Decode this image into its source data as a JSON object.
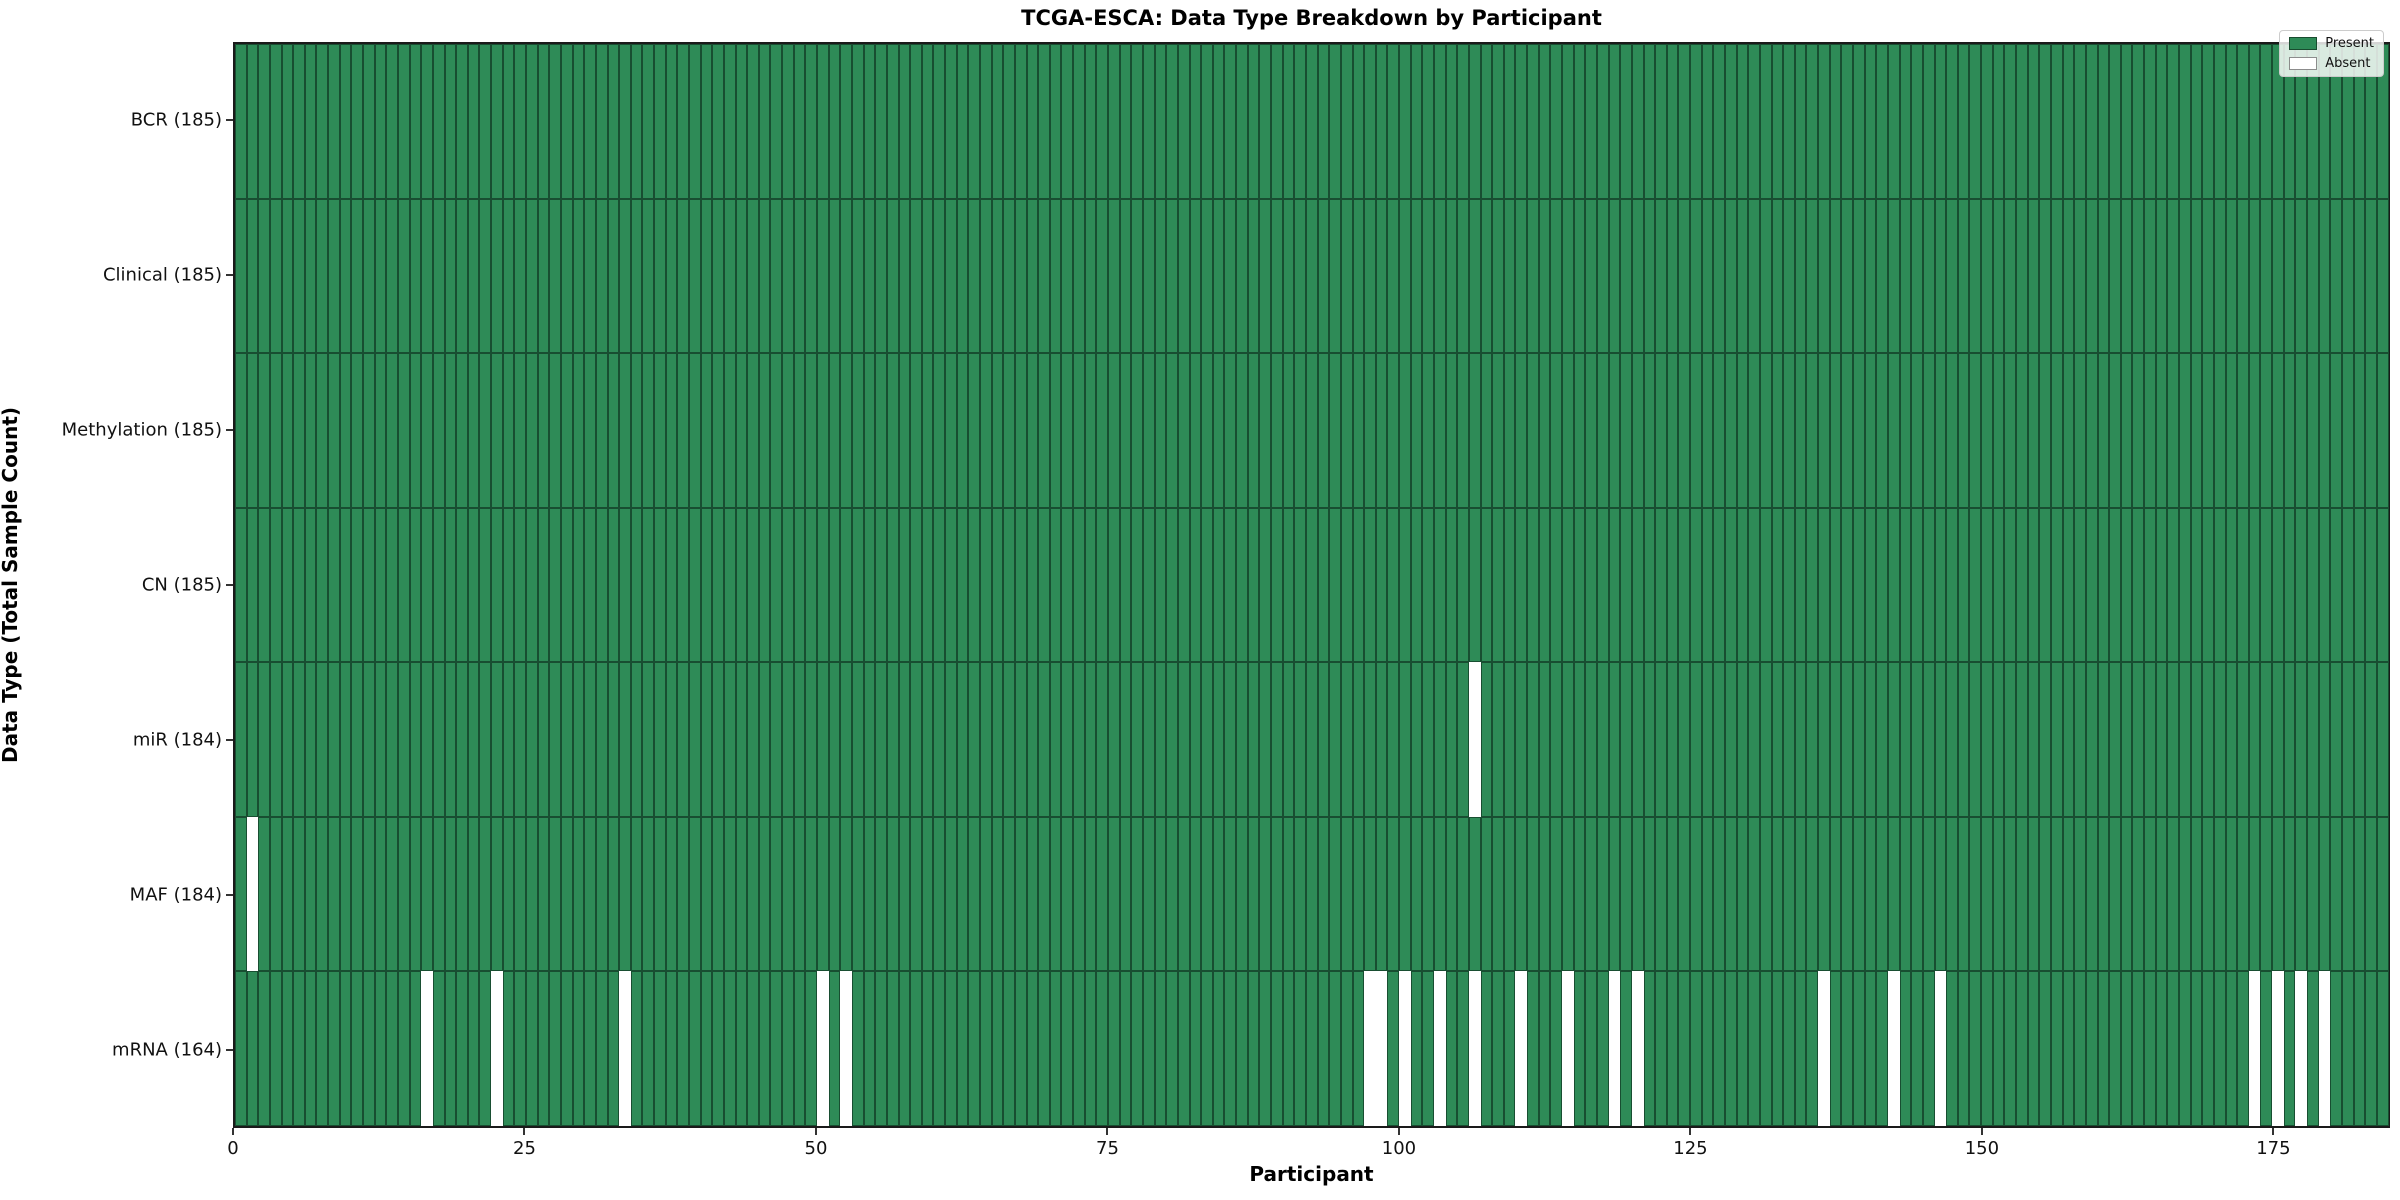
{
  "title": "TCGA-ESCA: Data Type Breakdown by Participant",
  "x_axis_label": "Participant",
  "y_axis_label": "Data Type (Total Sample Count)",
  "x_ticks": [
    0,
    25,
    50,
    75,
    100,
    125,
    150,
    175
  ],
  "colors": {
    "present": "#2e8b57",
    "absent": "#ffffff",
    "bar_edge": "rgba(8,30,18,0.55)",
    "spine": "#1a1a1a"
  },
  "legend": [
    {
      "label": "Present",
      "color": "#2e8b57"
    },
    {
      "label": "Absent",
      "color": "#ffffff"
    }
  ],
  "chart_data": {
    "type": "heatmap",
    "x_range": [
      0,
      185
    ],
    "n_participants": 185,
    "legend_position": "upper right",
    "grid": false,
    "rows": [
      {
        "label": "BCR (185)",
        "data_type": "BCR",
        "count": 185,
        "absent": []
      },
      {
        "label": "Clinical (185)",
        "data_type": "Clinical",
        "count": 185,
        "absent": []
      },
      {
        "label": "Methylation (185)",
        "data_type": "Methylation",
        "count": 185,
        "absent": []
      },
      {
        "label": "CN (185)",
        "data_type": "CN",
        "count": 185,
        "absent": []
      },
      {
        "label": "miR (184)",
        "data_type": "miR",
        "count": 184,
        "absent": [
          106
        ]
      },
      {
        "label": "MAF (184)",
        "data_type": "MAF",
        "count": 184,
        "absent": [
          1
        ]
      },
      {
        "label": "mRNA (164)",
        "data_type": "mRNA",
        "count": 164,
        "absent": [
          16,
          22,
          33,
          50,
          52,
          97,
          98,
          100,
          103,
          106,
          110,
          114,
          118,
          120,
          136,
          142,
          146,
          173,
          175,
          177,
          179
        ]
      }
    ]
  }
}
